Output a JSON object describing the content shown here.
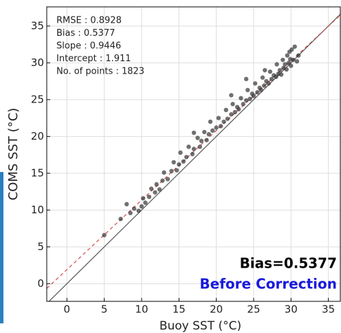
{
  "chart_data": {
    "type": "scatter",
    "x_label": "Buoy SST (°C)",
    "y_label": "COMS SST (°C)",
    "annotations": [
      "RMSE : 0.8928",
      "Bias : 0.5377",
      "Slope : 0.9446",
      "Intercept : 1.911",
      "No. of points : 1823"
    ],
    "highlight_labels": [
      {
        "text": "Bias=0.5377",
        "color": "#000000"
      },
      {
        "text": "Before Correction",
        "color": "#1a1adc"
      }
    ],
    "xlim": [
      -2.7,
      36.6
    ],
    "ylim": [
      -2.4,
      37.6
    ],
    "xticks": [
      0,
      5,
      10,
      15,
      20,
      25,
      30,
      35
    ],
    "yticks": [
      0,
      5,
      10,
      15,
      20,
      25,
      30,
      35
    ],
    "grid": true,
    "fit_line": {
      "slope": 0.9446,
      "intercept": 1.911,
      "color": "#d04a4a"
    },
    "identity_line_color": "#555555",
    "series": [
      {
        "color": "#333333",
        "x": [
          5.0,
          7.2,
          8.0,
          8.5,
          9.0,
          9.6,
          10.0,
          10.2,
          10.5,
          11.0,
          11.3,
          11.8,
          12.0,
          12.4,
          12.8,
          13.0,
          13.5,
          14.0,
          14.3,
          14.7,
          15.0,
          15.2,
          15.6,
          16.0,
          16.3,
          16.8,
          17.0,
          17.5,
          17.8,
          18.0,
          18.4,
          18.7,
          19.0,
          19.2,
          19.5,
          20.0,
          20.3,
          20.6,
          21.0,
          21.3,
          21.5,
          22.0,
          22.2,
          22.5,
          22.8,
          23.0,
          23.3,
          23.6,
          24.0,
          24.2,
          24.5,
          24.8,
          25.0,
          25.2,
          25.5,
          25.8,
          26.0,
          26.2,
          26.4,
          26.7,
          27.0,
          27.2,
          27.4,
          27.7,
          28.0,
          28.1,
          28.3,
          28.5,
          28.7,
          28.9,
          29.0,
          29.2,
          29.4,
          29.5,
          29.7,
          29.9,
          30.0,
          30.1,
          30.3,
          30.5,
          29.8,
          26.5,
          22.0,
          17.0,
          24.0,
          31.0,
          30.8
        ],
        "values": [
          6.6,
          8.8,
          10.8,
          9.6,
          10.2,
          9.9,
          10.5,
          11.6,
          11.0,
          11.8,
          12.9,
          12.4,
          13.5,
          12.8,
          14.0,
          15.1,
          14.2,
          15.3,
          16.5,
          15.4,
          16.2,
          17.8,
          16.6,
          17.2,
          18.6,
          17.6,
          18.3,
          19.8,
          18.6,
          19.4,
          20.6,
          19.5,
          20.3,
          22.0,
          20.8,
          21.2,
          22.5,
          21.4,
          22.0,
          23.6,
          22.4,
          23.0,
          24.4,
          23.3,
          24.0,
          23.7,
          25.2,
          24.4,
          24.9,
          26.3,
          25.1,
          25.8,
          25.5,
          27.2,
          26.0,
          26.6,
          26.3,
          28.0,
          26.9,
          27.5,
          27.2,
          28.8,
          27.8,
          28.3,
          28.1,
          29.8,
          28.5,
          29.0,
          28.4,
          30.4,
          29.3,
          29.8,
          29.1,
          31.0,
          30.0,
          30.5,
          29.6,
          31.8,
          30.4,
          32.2,
          31.5,
          29.0,
          25.6,
          20.5,
          27.8,
          31.0,
          30.2
        ]
      }
    ]
  }
}
